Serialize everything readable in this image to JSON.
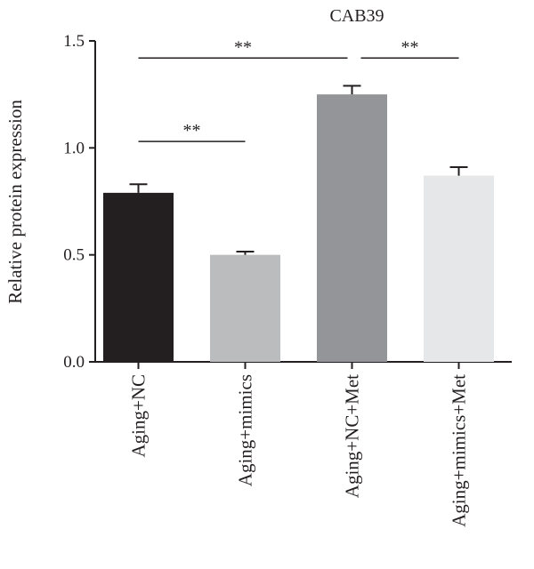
{
  "chart_data": {
    "type": "bar",
    "title": "CAB39",
    "xlabel": "",
    "ylabel": "Relative protein expression",
    "ylim": [
      0,
      1.5
    ],
    "yticks": [
      "0.0",
      "0.5",
      "1.0",
      "1.5"
    ],
    "categories": [
      "Aging+NC",
      "Aging+mimics",
      "Aging+NC+Met",
      "Aging+mimics+Met"
    ],
    "values": [
      0.79,
      0.5,
      1.25,
      0.87
    ],
    "errors": [
      0.04,
      0.015,
      0.04,
      0.04
    ],
    "colors": [
      "#231f20",
      "#bbbcbe",
      "#939598",
      "#e6e7e8"
    ],
    "grid": false,
    "legend": "none",
    "significance": [
      {
        "from": 0,
        "to": 2,
        "label": "**",
        "y": 1.42
      },
      {
        "from": 2,
        "to": 3,
        "label": "**",
        "y": 1.42
      },
      {
        "from": 0,
        "to": 1,
        "label": "**",
        "y": 1.03
      }
    ]
  }
}
